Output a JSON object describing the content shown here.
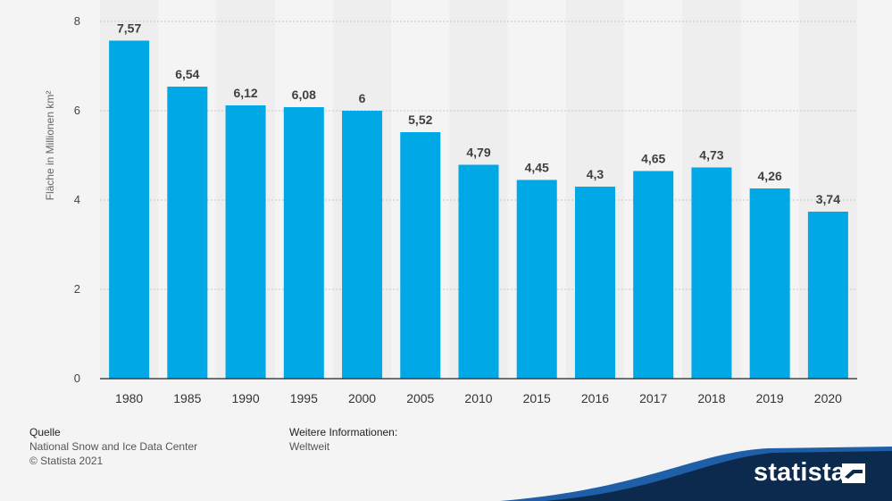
{
  "chart_data": {
    "type": "bar",
    "categories": [
      "1980",
      "1985",
      "1990",
      "1995",
      "2000",
      "2005",
      "2010",
      "2015",
      "2016",
      "2017",
      "2018",
      "2019",
      "2020"
    ],
    "values": [
      7.57,
      6.54,
      6.12,
      6.08,
      6,
      5.52,
      4.79,
      4.45,
      4.3,
      4.65,
      4.73,
      4.26,
      3.74
    ],
    "value_labels": [
      "7,57",
      "6,54",
      "6,12",
      "6,08",
      "6",
      "5,52",
      "4,79",
      "4,45",
      "4,3",
      "4,65",
      "4,73",
      "4,26",
      "3,74"
    ],
    "ylabel": "Fläche in Millionen km²",
    "xlabel": "",
    "ylim": [
      0,
      8
    ],
    "yticks": [
      0,
      2,
      4,
      6,
      8
    ],
    "grid": true,
    "bar_color": "#00a8e6"
  },
  "footer": {
    "source_heading": "Quelle",
    "source_name": "National Snow and Ice Data Center",
    "copyright": "© Statista 2021",
    "info_heading": "Weitere Informationen:",
    "info_value": "Weltweit"
  },
  "brand": {
    "name": "statista",
    "band_color": "#0c2a4d",
    "accent_color": "#1f5fa8"
  }
}
